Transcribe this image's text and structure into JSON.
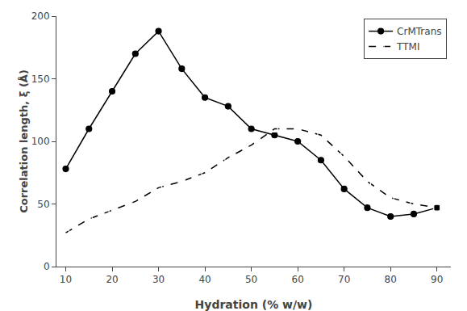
{
  "chart_data": {
    "type": "line",
    "x": [
      10,
      15,
      20,
      25,
      30,
      35,
      40,
      45,
      50,
      55,
      60,
      65,
      70,
      75,
      80,
      85,
      90
    ],
    "series": [
      {
        "name": "CrMTrans",
        "color": "#000000",
        "marker": "circle",
        "line_style": "solid",
        "values": [
          78,
          110,
          140,
          170,
          188,
          158,
          135,
          128,
          110,
          105,
          100,
          85,
          62,
          47,
          40,
          42,
          47
        ]
      },
      {
        "name": "TTMI",
        "color": "#000000",
        "marker": "square-open",
        "line_style": "dashed",
        "values": [
          27,
          38,
          45,
          52,
          63,
          68,
          75,
          87,
          97,
          110,
          110,
          105,
          88,
          68,
          55,
          50,
          47
        ]
      }
    ],
    "xlabel": "Hydration (% w/w)",
    "ylabel": "Correlation length, ξ (Å)",
    "xlim": [
      8,
      93
    ],
    "ylim": [
      0,
      200
    ],
    "xticks": [
      10,
      20,
      30,
      40,
      50,
      60,
      70,
      80,
      90
    ],
    "yticks": [
      0,
      50,
      100,
      150,
      200
    ],
    "legend": "upper right",
    "grid": false
  }
}
